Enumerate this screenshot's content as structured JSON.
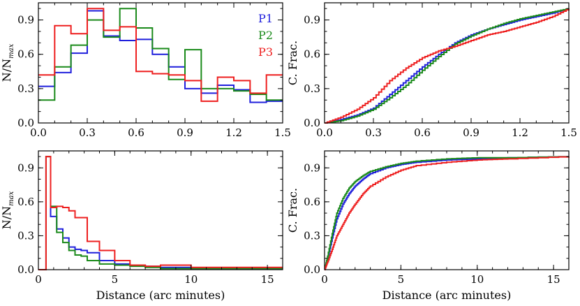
{
  "chart_data": [
    {
      "type": "line",
      "style": "step-histogram",
      "panel": "top-left",
      "title": "",
      "xlabel": "",
      "ylabel": "N/N",
      "ylabel_sub": "max",
      "xlim": [
        0,
        1.5
      ],
      "ylim": [
        0,
        1.05
      ],
      "xticks": [
        0,
        0.3,
        0.6,
        0.9,
        1.2,
        1.5
      ],
      "xtick_labels": [
        "0.0",
        "0.3",
        "0.6",
        "0.9",
        "1.2",
        "1.5"
      ],
      "yticks": [
        0,
        0.3,
        0.6,
        0.9
      ],
      "ytick_labels": [
        "0.0",
        "0.3",
        "0.6",
        "0.9"
      ],
      "legend": {
        "placement": "top-right",
        "entries": [
          "P1",
          "P2",
          "P3"
        ]
      },
      "bin_edges": [
        0,
        0.1,
        0.2,
        0.3,
        0.4,
        0.5,
        0.6,
        0.7,
        0.8,
        0.9,
        1.0,
        1.1,
        1.2,
        1.3,
        1.4,
        1.5
      ],
      "series": [
        {
          "name": "P1",
          "color": "#1f1fdc",
          "values": [
            0.32,
            0.44,
            0.61,
            0.98,
            0.76,
            0.72,
            0.73,
            0.6,
            0.49,
            0.3,
            0.26,
            0.33,
            0.29,
            0.18,
            0.19
          ]
        },
        {
          "name": "P2",
          "color": "#1a8a1a",
          "values": [
            0.2,
            0.49,
            0.68,
            0.9,
            0.75,
            1.0,
            0.83,
            0.65,
            0.38,
            0.64,
            0.3,
            0.3,
            0.28,
            0.25,
            0.2
          ]
        },
        {
          "name": "P3",
          "color": "#ee1f1f",
          "values": [
            0.42,
            0.85,
            0.78,
            1.0,
            0.81,
            0.84,
            0.45,
            0.43,
            0.42,
            0.37,
            0.19,
            0.4,
            0.37,
            0.26,
            0.42
          ]
        }
      ]
    },
    {
      "type": "line",
      "style": "cumulative",
      "panel": "top-right",
      "title": "",
      "xlabel": "",
      "ylabel": "C. Frac.",
      "xlim": [
        0,
        1.5
      ],
      "ylim": [
        0,
        1.05
      ],
      "xticks": [
        0,
        0.3,
        0.6,
        0.9,
        1.2,
        1.5
      ],
      "xtick_labels": [
        "0.0",
        "0.3",
        "0.6",
        "0.9",
        "1.2",
        "1.5"
      ],
      "yticks": [
        0,
        0.3,
        0.6,
        0.9
      ],
      "ytick_labels": [
        "0.0",
        "0.3",
        "0.6",
        "0.9"
      ],
      "series": [
        {
          "name": "P1",
          "color": "#1f1fdc",
          "x": [
            0,
            0.1,
            0.2,
            0.3,
            0.4,
            0.5,
            0.6,
            0.7,
            0.8,
            0.9,
            1.0,
            1.1,
            1.2,
            1.3,
            1.4,
            1.5
          ],
          "y": [
            0,
            0.03,
            0.07,
            0.13,
            0.25,
            0.37,
            0.49,
            0.6,
            0.7,
            0.77,
            0.82,
            0.86,
            0.9,
            0.93,
            0.96,
            1.0
          ]
        },
        {
          "name": "P2",
          "color": "#1a8a1a",
          "x": [
            0,
            0.1,
            0.2,
            0.3,
            0.4,
            0.5,
            0.6,
            0.7,
            0.8,
            0.9,
            1.0,
            1.1,
            1.2,
            1.3,
            1.4,
            1.5
          ],
          "y": [
            0,
            0.02,
            0.06,
            0.12,
            0.22,
            0.33,
            0.46,
            0.58,
            0.69,
            0.76,
            0.82,
            0.87,
            0.91,
            0.94,
            0.97,
            1.0
          ]
        },
        {
          "name": "P3",
          "color": "#ee1f1f",
          "x": [
            0,
            0.1,
            0.2,
            0.3,
            0.4,
            0.5,
            0.6,
            0.7,
            0.8,
            0.9,
            1.0,
            1.1,
            1.2,
            1.3,
            1.4,
            1.5
          ],
          "y": [
            0,
            0.05,
            0.12,
            0.22,
            0.37,
            0.48,
            0.57,
            0.63,
            0.67,
            0.72,
            0.77,
            0.8,
            0.84,
            0.88,
            0.93,
            1.0
          ]
        }
      ]
    },
    {
      "type": "line",
      "style": "step-histogram",
      "panel": "bottom-left",
      "title": "",
      "xlabel": "Distance (arc minutes)",
      "ylabel": "N/N",
      "ylabel_sub": "max",
      "xlim": [
        0,
        16
      ],
      "ylim": [
        0,
        1.05
      ],
      "xticks": [
        0,
        5,
        10,
        15
      ],
      "xtick_labels": [
        "0",
        "5",
        "10",
        "15"
      ],
      "yticks": [
        0,
        0.3,
        0.6,
        0.9
      ],
      "ytick_labels": [
        "0.0",
        "0.3",
        "0.6",
        "0.9"
      ],
      "bin_edges": [
        0,
        0.5,
        0.8,
        1.2,
        1.6,
        2.0,
        2.4,
        2.8,
        3.2,
        4.0,
        5.0,
        6.0,
        7.0,
        8.0,
        10.0,
        12.0,
        16.0
      ],
      "series": [
        {
          "name": "P1",
          "color": "#1f1fdc",
          "values": [
            0,
            1.0,
            0.47,
            0.36,
            0.28,
            0.2,
            0.18,
            0.17,
            0.15,
            0.08,
            0.05,
            0.04,
            0.03,
            0.02,
            0.01,
            0.01
          ]
        },
        {
          "name": "P2",
          "color": "#1a8a1a",
          "values": [
            0,
            1.0,
            0.56,
            0.33,
            0.24,
            0.17,
            0.13,
            0.12,
            0.08,
            0.05,
            0.04,
            0.03,
            0.02,
            0.01,
            0.01,
            0.01
          ]
        },
        {
          "name": "P3",
          "color": "#ee1f1f",
          "values": [
            0,
            1.0,
            0.55,
            0.56,
            0.55,
            0.52,
            0.46,
            0.46,
            0.25,
            0.17,
            0.08,
            0.04,
            0.03,
            0.04,
            0.02,
            0.02
          ]
        }
      ]
    },
    {
      "type": "line",
      "style": "cumulative",
      "panel": "bottom-right",
      "title": "",
      "xlabel": "Distance (arc minutes)",
      "ylabel": "C. Frac.",
      "xlim": [
        0,
        16
      ],
      "ylim": [
        0,
        1.05
      ],
      "xticks": [
        0,
        5,
        10,
        15
      ],
      "xtick_labels": [
        "0",
        "5",
        "10",
        "15"
      ],
      "yticks": [
        0,
        0.3,
        0.6,
        0.9
      ],
      "ytick_labels": [
        "0.0",
        "0.3",
        "0.6",
        "0.9"
      ],
      "series": [
        {
          "name": "P1",
          "color": "#1f1fdc",
          "x": [
            0,
            0.2,
            0.5,
            0.8,
            1.2,
            1.6,
            2.0,
            2.5,
            3.0,
            4.0,
            5.0,
            6.0,
            8.0,
            10.0,
            12.0,
            16.0
          ],
          "y": [
            0,
            0.1,
            0.28,
            0.45,
            0.58,
            0.67,
            0.74,
            0.8,
            0.85,
            0.9,
            0.93,
            0.95,
            0.97,
            0.98,
            0.99,
            1.0
          ]
        },
        {
          "name": "P2",
          "color": "#1a8a1a",
          "x": [
            0,
            0.2,
            0.5,
            0.8,
            1.2,
            1.6,
            2.0,
            2.5,
            3.0,
            4.0,
            5.0,
            6.0,
            8.0,
            10.0,
            12.0,
            16.0
          ],
          "y": [
            0,
            0.12,
            0.32,
            0.5,
            0.63,
            0.72,
            0.78,
            0.83,
            0.87,
            0.91,
            0.94,
            0.96,
            0.98,
            0.99,
            0.99,
            1.0
          ]
        },
        {
          "name": "P3",
          "color": "#ee1f1f",
          "x": [
            0,
            0.2,
            0.5,
            0.8,
            1.2,
            1.6,
            2.0,
            2.5,
            3.0,
            4.0,
            5.0,
            6.0,
            8.0,
            10.0,
            12.0,
            16.0
          ],
          "y": [
            0,
            0.07,
            0.18,
            0.3,
            0.4,
            0.5,
            0.58,
            0.67,
            0.74,
            0.82,
            0.88,
            0.92,
            0.95,
            0.97,
            0.98,
            1.0
          ]
        }
      ]
    }
  ]
}
